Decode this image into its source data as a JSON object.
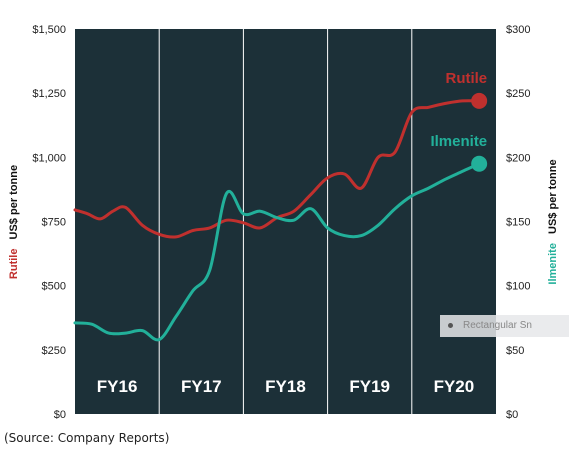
{
  "chart_data": {
    "type": "line",
    "categories": [
      "FY16",
      "FY17",
      "FY18",
      "FY19",
      "FY20"
    ],
    "left_axis": {
      "label_series": "Rutile",
      "label_unit": "US$ per tonne",
      "range": [
        0,
        1500
      ],
      "ticks": [
        "$0",
        "$250",
        "$500",
        "$750",
        "$1,000",
        "$1,250",
        "$1,500"
      ],
      "tick_values": [
        0,
        250,
        500,
        750,
        1000,
        1250,
        1500
      ]
    },
    "right_axis": {
      "label_series": "Ilmenite",
      "label_unit": "US$ per tonne",
      "range": [
        0,
        300
      ],
      "ticks": [
        "$0",
        "$50",
        "$100",
        "$150",
        "$200",
        "$250",
        "$300"
      ],
      "tick_values": [
        0,
        50,
        100,
        150,
        200,
        250,
        300
      ]
    },
    "x_range": [
      0,
      5
    ],
    "series": [
      {
        "name": "Rutile",
        "axis": "left",
        "color": "#c0302e",
        "x": [
          0.0,
          0.15,
          0.3,
          0.45,
          0.6,
          0.8,
          1.0,
          1.2,
          1.4,
          1.6,
          1.8,
          2.0,
          2.2,
          2.4,
          2.6,
          2.8,
          3.0,
          3.2,
          3.4,
          3.6,
          3.8,
          4.0,
          4.2,
          4.4,
          4.6,
          4.8
        ],
        "values": [
          795,
          780,
          760,
          790,
          805,
          735,
          700,
          690,
          715,
          725,
          755,
          745,
          725,
          765,
          790,
          855,
          920,
          935,
          880,
          1000,
          1020,
          1175,
          1195,
          1210,
          1220,
          1220
        ]
      },
      {
        "name": "Ilmenite",
        "axis": "right",
        "color": "#22b09a",
        "x": [
          0.0,
          0.2,
          0.4,
          0.6,
          0.8,
          1.0,
          1.2,
          1.4,
          1.6,
          1.8,
          2.0,
          2.2,
          2.4,
          2.6,
          2.8,
          3.0,
          3.2,
          3.4,
          3.6,
          3.8,
          4.0,
          4.2,
          4.4,
          4.6,
          4.8
        ],
        "values": [
          71,
          70,
          63,
          63,
          65,
          58,
          76,
          96,
          112,
          172,
          156,
          158,
          153,
          151,
          160,
          145,
          139,
          139,
          147,
          160,
          170,
          176,
          183,
          189,
          195
        ]
      }
    ],
    "grid": false,
    "legend": "inline"
  },
  "source": "(Source: Company Reports)",
  "watermark": "Rectangular Sn"
}
